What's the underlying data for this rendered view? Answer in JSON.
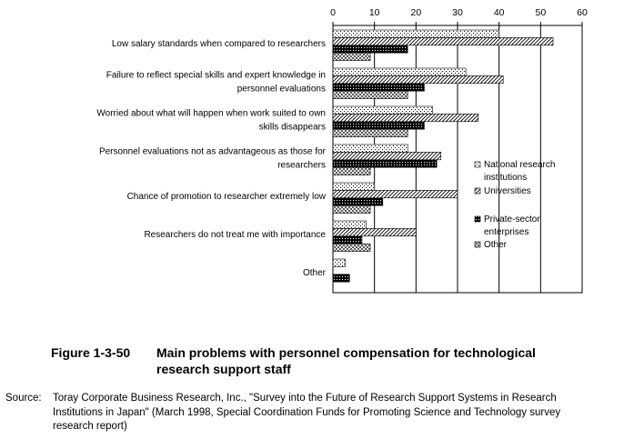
{
  "chart_data": {
    "type": "bar",
    "orientation": "horizontal",
    "categories": [
      [
        "Low salary standards when compared to researchers"
      ],
      [
        "Failure to reflect special skills and expert knowledge in",
        "personnel evaluations"
      ],
      [
        "Worried about what will happen when work suited to own",
        "skills disappears"
      ],
      [
        "Personnel evaluations not as advantageous as those for",
        "researchers"
      ],
      [
        "Chance of promotion to researcher extremely low"
      ],
      [
        "Researchers do not treat me with importance"
      ],
      [
        "Other"
      ]
    ],
    "series": [
      {
        "name": [
          "National research",
          "institutions"
        ],
        "pattern": "dots",
        "values": [
          40,
          32,
          24,
          18,
          10,
          8,
          3
        ]
      },
      {
        "name": [
          "Universities"
        ],
        "pattern": "hatch",
        "values": [
          53,
          41,
          35,
          26,
          30,
          20,
          0
        ]
      },
      {
        "name": [
          "Private-sector",
          "enterprises"
        ],
        "pattern": "dense",
        "values": [
          18,
          22,
          22,
          25,
          12,
          7,
          4
        ]
      },
      {
        "name": [
          "Other"
        ],
        "pattern": "cross",
        "values": [
          9,
          18,
          18,
          9,
          9,
          9,
          0
        ]
      }
    ],
    "xlim": [
      0,
      60
    ],
    "xticks": [
      0,
      10,
      20,
      30,
      40,
      50,
      60
    ],
    "grid": true,
    "legend_position": "right"
  },
  "caption": {
    "figure_number": "Figure 1-3-50",
    "title_line1": "Main problems with personnel compensation for technological",
    "title_line2": "research support staff"
  },
  "source": {
    "label": "Source:",
    "line1": "Toray Corporate Business Research, Inc., \"Survey into the Future of Research Support Systems in Research",
    "line2": "Institutions in Japan\" (March 1998, Special Coordination Funds for Promoting Science and Technology survey",
    "line3": "research report)"
  }
}
